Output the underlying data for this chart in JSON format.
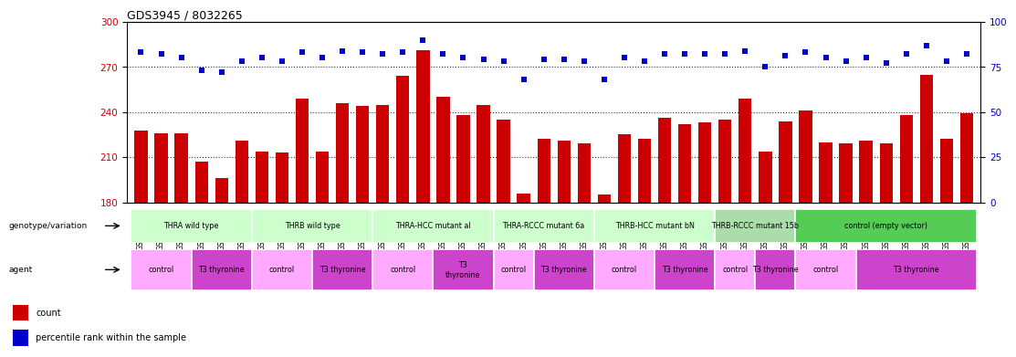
{
  "title": "GDS3945 / 8032265",
  "samples": [
    "GSM721654",
    "GSM721655",
    "GSM721656",
    "GSM721657",
    "GSM721658",
    "GSM721659",
    "GSM721660",
    "GSM721661",
    "GSM721662",
    "GSM721663",
    "GSM721664",
    "GSM721665",
    "GSM721666",
    "GSM721667",
    "GSM721668",
    "GSM721669",
    "GSM721670",
    "GSM721671",
    "GSM721672",
    "GSM721673",
    "GSM721674",
    "GSM721675",
    "GSM721676",
    "GSM721677",
    "GSM721678",
    "GSM721679",
    "GSM721680",
    "GSM721681",
    "GSM721682",
    "GSM721683",
    "GSM721684",
    "GSM721685",
    "GSM721686",
    "GSM721687",
    "GSM721688",
    "GSM721689",
    "GSM721690",
    "GSM721691",
    "GSM721692",
    "GSM721693",
    "GSM721694",
    "GSM721695"
  ],
  "bar_values": [
    228,
    226,
    226,
    207,
    196,
    221,
    214,
    213,
    249,
    214,
    246,
    244,
    245,
    264,
    281,
    250,
    238,
    245,
    235,
    186,
    222,
    221,
    219,
    185,
    225,
    222,
    236,
    232,
    233,
    235,
    249,
    214,
    234,
    241,
    220,
    219,
    221,
    219,
    238,
    265,
    222,
    239
  ],
  "percentile_values": [
    83,
    82,
    80,
    73,
    72,
    78,
    80,
    78,
    83,
    80,
    84,
    83,
    82,
    83,
    90,
    82,
    80,
    79,
    78,
    68,
    79,
    79,
    78,
    68,
    80,
    78,
    82,
    82,
    82,
    82,
    84,
    75,
    81,
    83,
    80,
    78,
    80,
    77,
    82,
    87,
    78,
    82
  ],
  "ylim_left": [
    180,
    300
  ],
  "ylim_right": [
    0,
    100
  ],
  "yticks_left": [
    180,
    210,
    240,
    270,
    300
  ],
  "yticks_right": [
    0,
    25,
    50,
    75,
    100
  ],
  "bar_color": "#CC0000",
  "dot_color": "#0000CC",
  "genotype_groups": [
    {
      "label": "THRA wild type",
      "start": 0,
      "end": 5,
      "color": "#ccffcc"
    },
    {
      "label": "THRB wild type",
      "start": 6,
      "end": 11,
      "color": "#ccffcc"
    },
    {
      "label": "THRA-HCC mutant al",
      "start": 12,
      "end": 17,
      "color": "#ccffcc"
    },
    {
      "label": "THRA-RCCC mutant 6a",
      "start": 18,
      "end": 22,
      "color": "#ccffcc"
    },
    {
      "label": "THRB-HCC mutant bN",
      "start": 23,
      "end": 28,
      "color": "#ccffcc"
    },
    {
      "label": "THRB-RCCC mutant 15b",
      "start": 29,
      "end": 32,
      "color": "#aaddaa"
    },
    {
      "label": "control (empty vector)",
      "start": 33,
      "end": 41,
      "color": "#55cc55"
    }
  ],
  "agent_groups": [
    {
      "label": "control",
      "start": 0,
      "end": 2,
      "color": "#ffaaff"
    },
    {
      "label": "T3 thyronine",
      "start": 3,
      "end": 5,
      "color": "#cc44cc"
    },
    {
      "label": "control",
      "start": 6,
      "end": 8,
      "color": "#ffaaff"
    },
    {
      "label": "T3 thyronine",
      "start": 9,
      "end": 11,
      "color": "#cc44cc"
    },
    {
      "label": "control",
      "start": 12,
      "end": 14,
      "color": "#ffaaff"
    },
    {
      "label": "T3\nthyronine",
      "start": 15,
      "end": 17,
      "color": "#cc44cc"
    },
    {
      "label": "control",
      "start": 18,
      "end": 19,
      "color": "#ffaaff"
    },
    {
      "label": "T3 thyronine",
      "start": 20,
      "end": 22,
      "color": "#cc44cc"
    },
    {
      "label": "control",
      "start": 23,
      "end": 25,
      "color": "#ffaaff"
    },
    {
      "label": "T3 thyronine",
      "start": 26,
      "end": 28,
      "color": "#cc44cc"
    },
    {
      "label": "control",
      "start": 29,
      "end": 30,
      "color": "#ffaaff"
    },
    {
      "label": "T3 thyronine",
      "start": 31,
      "end": 32,
      "color": "#cc44cc"
    },
    {
      "label": "control",
      "start": 33,
      "end": 35,
      "color": "#ffaaff"
    },
    {
      "label": "T3 thyronine",
      "start": 36,
      "end": 41,
      "color": "#cc44cc"
    }
  ],
  "legend_count_color": "#CC0000",
  "legend_dot_color": "#0000CC"
}
